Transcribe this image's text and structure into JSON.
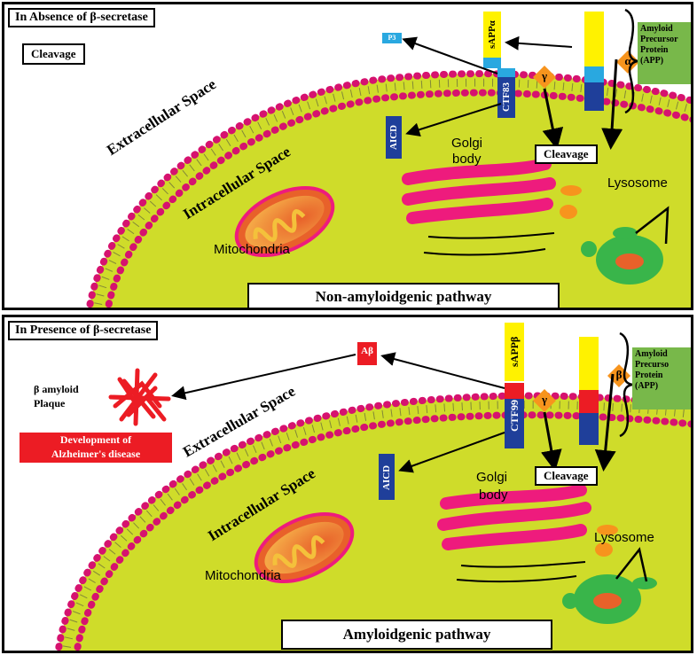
{
  "colors": {
    "cell": "#cfdc2a",
    "membrane": "#d6126f",
    "golgi": "#ee1b7d",
    "mito": "#e8612a",
    "lysosome_green": "#39b54a",
    "app_green": "#78b84a",
    "blue": "#1f3f9a",
    "light_blue": "#29a8e0",
    "yellow": "#fff200",
    "red": "#ec1c24",
    "enzyme_orange": "#f7941d"
  },
  "top": {
    "title": "In Absence of β-secretase",
    "cleavage_label": "Cleavage",
    "extracellular": "Extracellular Space",
    "intracellular": "Intracellular Space",
    "mitochondria": "Mitochondria",
    "golgi_line1": "Golgi",
    "golgi_line2": "body",
    "lysosome": "Lysosome",
    "pathway": "Non-amyloidgenic pathway",
    "cleavage_box": "Cleavage",
    "p3": "P3",
    "sappa": "sAPPα",
    "ctf": "CTF83",
    "aicd": "AICD",
    "gamma": "γ",
    "enzyme": "α",
    "app_lines": [
      "Amyloid",
      "Precursor",
      "Protein",
      "(APP)"
    ]
  },
  "bottom": {
    "title": "In Presence of β-secretase",
    "plaque_line1": "β amyloid",
    "plaque_line2": "Plaque",
    "alz_line1": "Development of",
    "alz_line2": "Alzheimer's disease",
    "extracellular": "Extracellular Space",
    "intracellular": "Intracellular Space",
    "mitochondria": "Mitochondria",
    "golgi_line1": "Golgi",
    "golgi_line2": "body",
    "lysosome": "Lysosome",
    "pathway": "Amyloidgenic pathway",
    "cleavage_box": "Cleavage",
    "abeta": "Aβ",
    "sappb": "sAPPβ",
    "ctf": "CTF99",
    "aicd": "AICD",
    "gamma": "γ",
    "enzyme": "β",
    "app_lines": [
      "Amyloid",
      "Precurso",
      "Protein",
      "(APP)"
    ]
  }
}
